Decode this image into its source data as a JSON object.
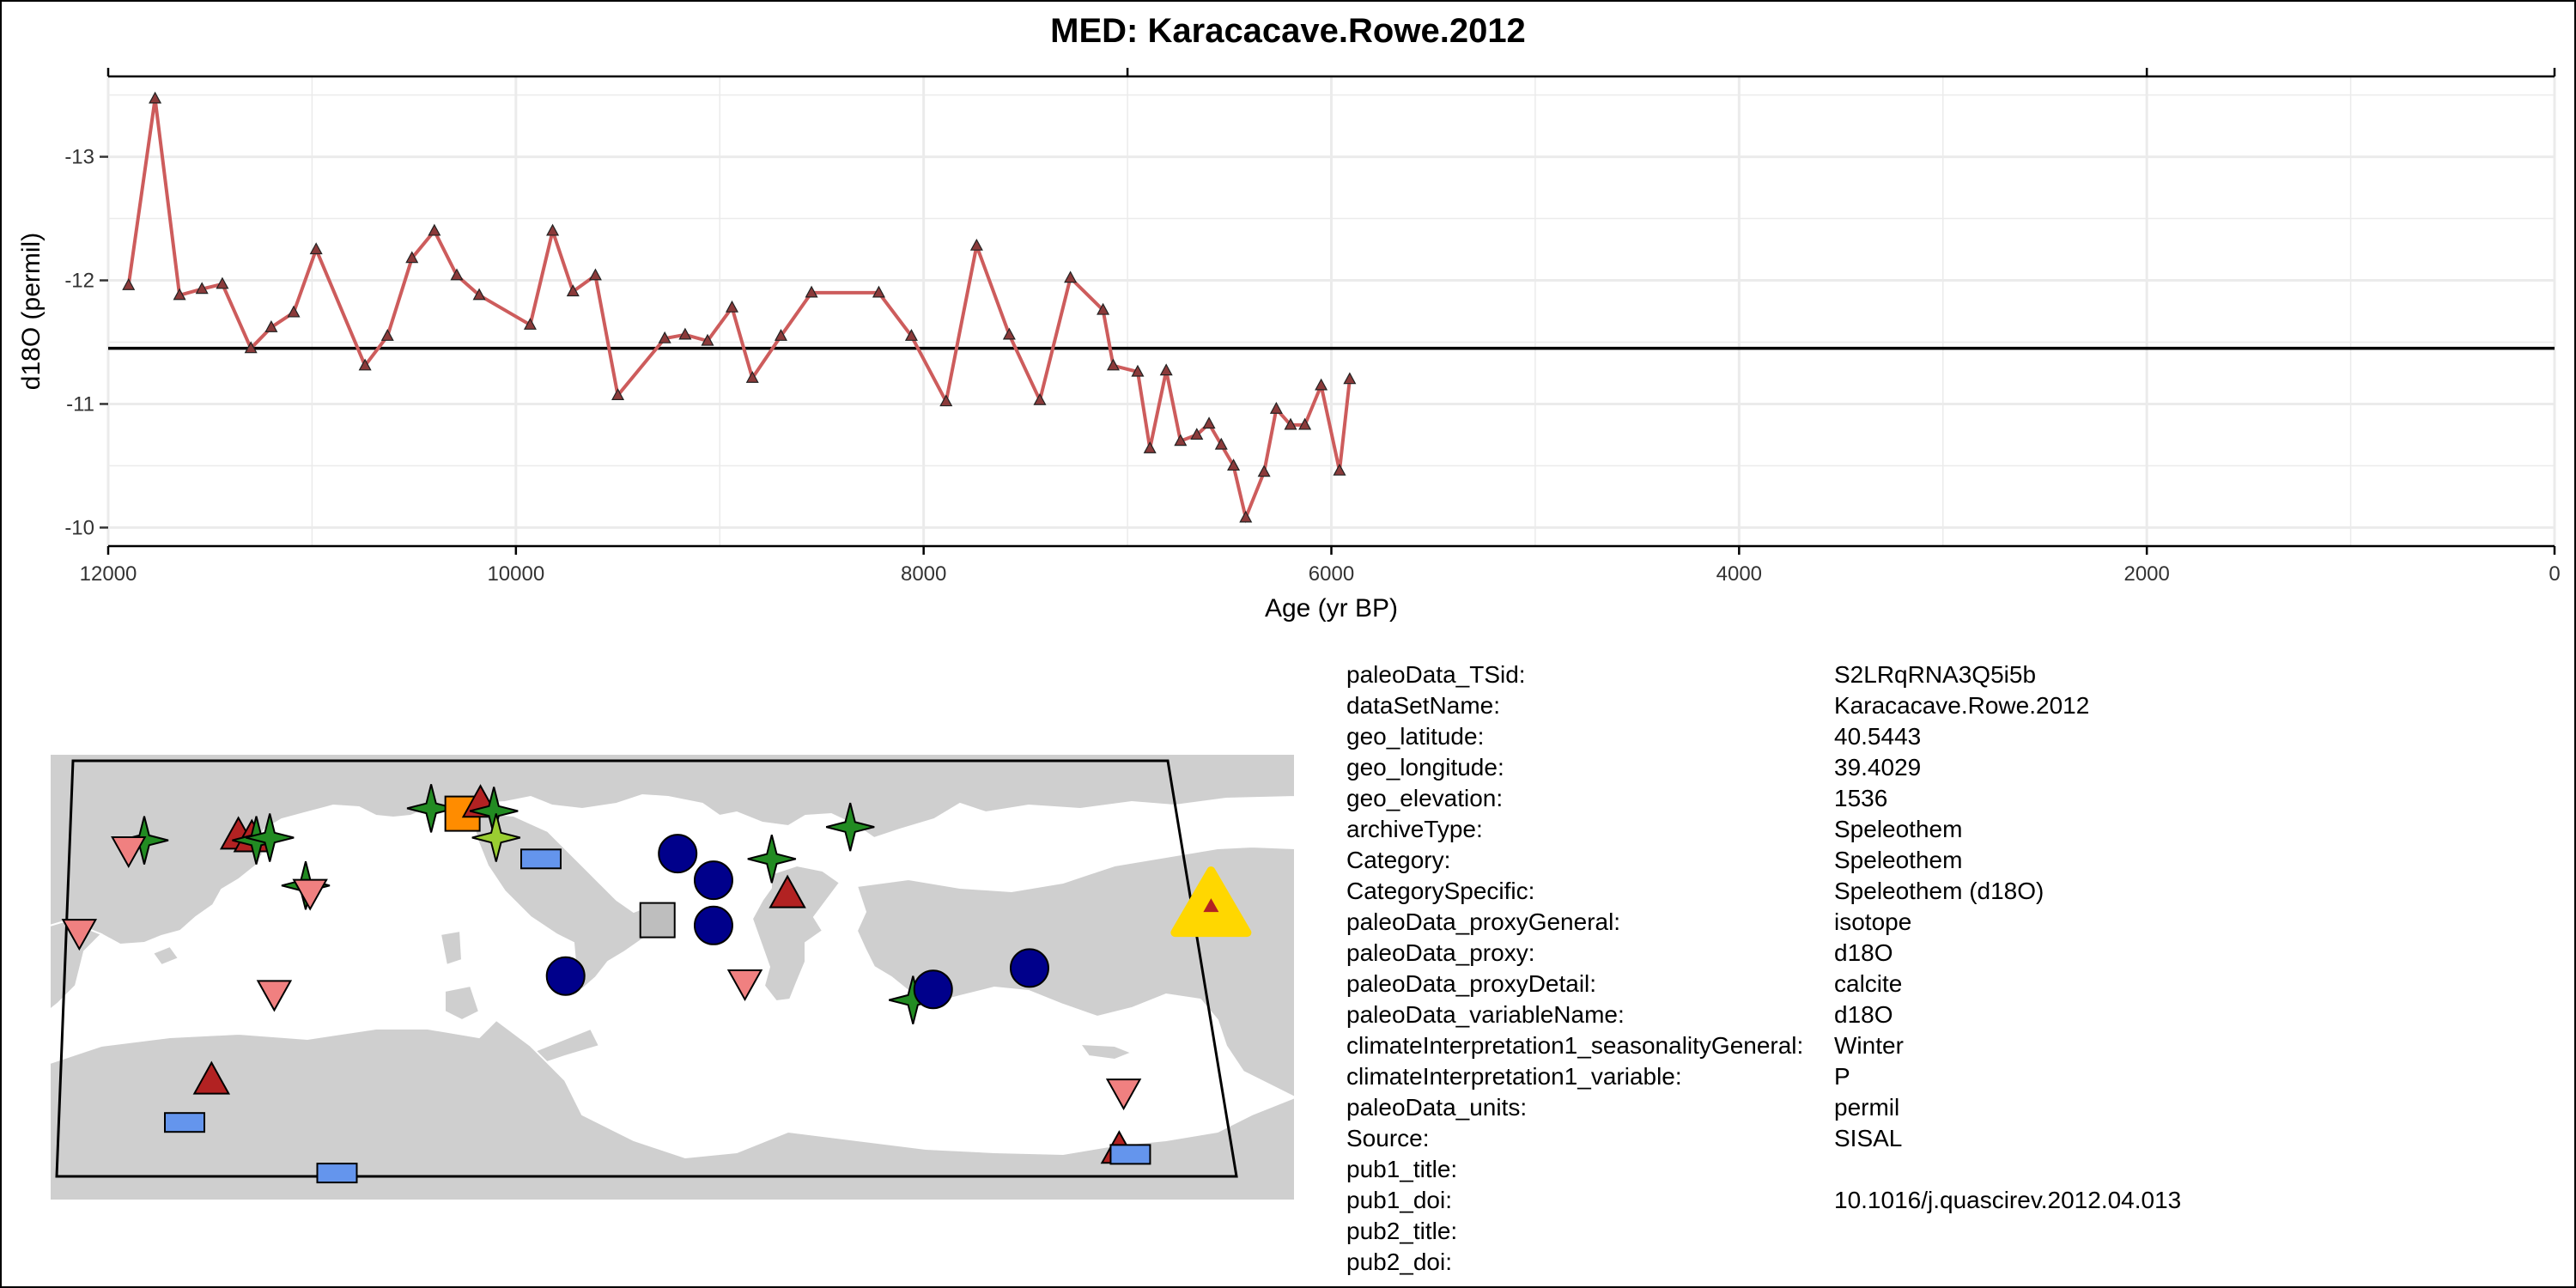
{
  "title": "MED: Karacacave.Rowe.2012",
  "chart_data": {
    "type": "line",
    "title": "MED: Karacacave.Rowe.2012",
    "xlabel": "Age (yr BP)",
    "ylabel": "d18O (permil)",
    "x_reversed": true,
    "y_reversed": true,
    "xlim": [
      12000,
      0
    ],
    "ylim": [
      -9.85,
      -13.65
    ],
    "x_ticks": [
      12000,
      10000,
      8000,
      6000,
      4000,
      2000,
      0
    ],
    "x_tick_labels": [
      "12000",
      "10000",
      "8000",
      "6000",
      "4000",
      "2000",
      "0"
    ],
    "y_ticks": [
      -13,
      -12,
      -11,
      -10
    ],
    "y_tick_labels": [
      "-13",
      "-12",
      "-11",
      "-10"
    ],
    "grid": true,
    "mean_line": -11.45,
    "series": [
      {
        "color": "#CD5C5C",
        "marker": "triangle",
        "x": [
          11900,
          11770,
          11650,
          11540,
          11440,
          11300,
          11200,
          11090,
          10980,
          10740,
          10630,
          10510,
          10400,
          10290,
          10180,
          9930,
          9820,
          9720,
          9610,
          9500,
          9270,
          9170,
          9060,
          8940,
          8840,
          8700,
          8550,
          8220,
          8060,
          7890,
          7740,
          7580,
          7430,
          7280,
          7120,
          7070,
          6950,
          6890,
          6810,
          6740,
          6660,
          6600,
          6540,
          6480,
          6420,
          6330,
          6270,
          6200,
          6130,
          6050,
          5960,
          5910
        ],
        "y": [
          -11.96,
          -13.47,
          -11.88,
          -11.93,
          -11.97,
          -11.45,
          -11.62,
          -11.74,
          -12.25,
          -11.31,
          -11.55,
          -12.18,
          -12.4,
          -12.04,
          -11.88,
          -11.64,
          -12.4,
          -11.91,
          -12.04,
          -11.07,
          -11.53,
          -11.56,
          -11.51,
          -11.78,
          -11.21,
          -11.55,
          -11.9,
          -11.9,
          -11.55,
          -11.02,
          -12.28,
          -11.56,
          -11.03,
          -12.02,
          -11.76,
          -11.31,
          -11.26,
          -10.64,
          -11.27,
          -10.7,
          -10.75,
          -10.84,
          -10.67,
          -10.5,
          -10.08,
          -10.45,
          -10.96,
          -10.83,
          -10.83,
          -11.15,
          -10.46,
          -11.2
        ]
      }
    ]
  },
  "metadata": [
    {
      "key": "paleoData_TSid:",
      "value": "S2LRqRNA3Q5i5b"
    },
    {
      "key": "dataSetName:",
      "value": "Karacacave.Rowe.2012"
    },
    {
      "key": "geo_latitude:",
      "value": "40.5443"
    },
    {
      "key": "geo_longitude:",
      "value": "39.4029"
    },
    {
      "key": "geo_elevation:",
      "value": "1536"
    },
    {
      "key": "archiveType:",
      "value": "Speleothem"
    },
    {
      "key": "Category:",
      "value": "Speleothem"
    },
    {
      "key": "CategorySpecific:",
      "value": "Speleothem (d18O)"
    },
    {
      "key": "paleoData_proxyGeneral:",
      "value": "isotope"
    },
    {
      "key": "paleoData_proxy:",
      "value": "d18O"
    },
    {
      "key": "paleoData_proxyDetail:",
      "value": "calcite"
    },
    {
      "key": "paleoData_variableName:",
      "value": "d18O"
    },
    {
      "key": "climateInterpretation1_seasonalityGeneral:",
      "value": "Winter"
    },
    {
      "key": "climateInterpretation1_variable:",
      "value": "P"
    },
    {
      "key": "paleoData_units:",
      "value": "permil"
    },
    {
      "key": "Source:",
      "value": "SISAL"
    },
    {
      "key": "pub1_title:",
      "value": ""
    },
    {
      "key": "pub1_doi:",
      "value": "10.1016/j.quascirev.2012.04.013"
    },
    {
      "key": "pub2_title:",
      "value": ""
    },
    {
      "key": "pub2_doi:",
      "value": ""
    }
  ],
  "map": {
    "land_color": "#CFCFCF",
    "sea_color": "#FFFFFF",
    "highlight_color": "#FFD700",
    "sites": [
      {
        "shape": "star",
        "color": "#228B22",
        "lon": -8.2,
        "lat": 43.0
      },
      {
        "shape": "triangle-down",
        "color": "#F08080",
        "lon": -8.9,
        "lat": 42.6
      },
      {
        "shape": "triangle",
        "color": "#B22222",
        "lon": -4.0,
        "lat": 43.2
      },
      {
        "shape": "triangle",
        "color": "#B22222",
        "lon": -3.4,
        "lat": 43.1
      },
      {
        "shape": "star",
        "color": "#228B22",
        "lon": -3.2,
        "lat": 43.0
      },
      {
        "shape": "star",
        "color": "#228B22",
        "lon": -2.6,
        "lat": 43.1
      },
      {
        "shape": "star",
        "color": "#228B22",
        "lon": 4.6,
        "lat": 44.2
      },
      {
        "shape": "square",
        "color": "#FF8C00",
        "lon": 6.0,
        "lat": 44.0
      },
      {
        "shape": "triangle",
        "color": "#B22222",
        "lon": 6.8,
        "lat": 44.4
      },
      {
        "shape": "star",
        "color": "#228B22",
        "lon": 7.4,
        "lat": 44.1
      },
      {
        "shape": "star",
        "color": "#9ACD32",
        "lon": 7.5,
        "lat": 43.1
      },
      {
        "shape": "rect",
        "color": "#6495ED",
        "lon": 9.5,
        "lat": 42.3
      },
      {
        "shape": "star",
        "color": "#228B22",
        "lon": -1.0,
        "lat": 41.3
      },
      {
        "shape": "triangle-down",
        "color": "#F08080",
        "lon": -0.8,
        "lat": 41.0
      },
      {
        "shape": "triangle-down",
        "color": "#F08080",
        "lon": -11.1,
        "lat": 39.5
      },
      {
        "shape": "triangle-down",
        "color": "#F08080",
        "lon": -2.4,
        "lat": 37.2
      },
      {
        "shape": "circle",
        "color": "#00008B",
        "lon": 15.6,
        "lat": 42.5
      },
      {
        "shape": "circle",
        "color": "#00008B",
        "lon": 17.2,
        "lat": 41.5
      },
      {
        "shape": "circle",
        "color": "#00008B",
        "lon": 17.2,
        "lat": 39.8
      },
      {
        "shape": "square",
        "color": "#BEBEBE",
        "lon": 14.7,
        "lat": 40.0
      },
      {
        "shape": "circle",
        "color": "#00008B",
        "lon": 10.6,
        "lat": 37.9
      },
      {
        "shape": "star",
        "color": "#228B22",
        "lon": 19.8,
        "lat": 42.3
      },
      {
        "shape": "star",
        "color": "#228B22",
        "lon": 23.3,
        "lat": 43.5
      },
      {
        "shape": "triangle",
        "color": "#B22222",
        "lon": 20.5,
        "lat": 41.0
      },
      {
        "shape": "triangle-down",
        "color": "#F08080",
        "lon": 18.6,
        "lat": 37.6
      },
      {
        "shape": "star",
        "color": "#228B22",
        "lon": 26.1,
        "lat": 37.0
      },
      {
        "shape": "circle",
        "color": "#00008B",
        "lon": 27.0,
        "lat": 37.4
      },
      {
        "shape": "circle",
        "color": "#00008B",
        "lon": 31.3,
        "lat": 38.2
      },
      {
        "shape": "triangle",
        "color": "#B22222",
        "lon": -5.2,
        "lat": 34.0
      },
      {
        "shape": "rect",
        "color": "#6495ED",
        "lon": -6.4,
        "lat": 32.4
      },
      {
        "shape": "rect",
        "color": "#6495ED",
        "lon": 0.4,
        "lat": 30.5
      },
      {
        "shape": "triangle-down",
        "color": "#F08080",
        "lon": 35.5,
        "lat": 33.5
      },
      {
        "shape": "triangle",
        "color": "#B22222",
        "lon": 35.3,
        "lat": 31.4
      },
      {
        "shape": "rect",
        "color": "#6495ED",
        "lon": 35.8,
        "lat": 31.2
      },
      {
        "shape": "triangle",
        "color": "#B22222",
        "lon": 39.4,
        "lat": 40.5,
        "highlight": true
      }
    ]
  }
}
